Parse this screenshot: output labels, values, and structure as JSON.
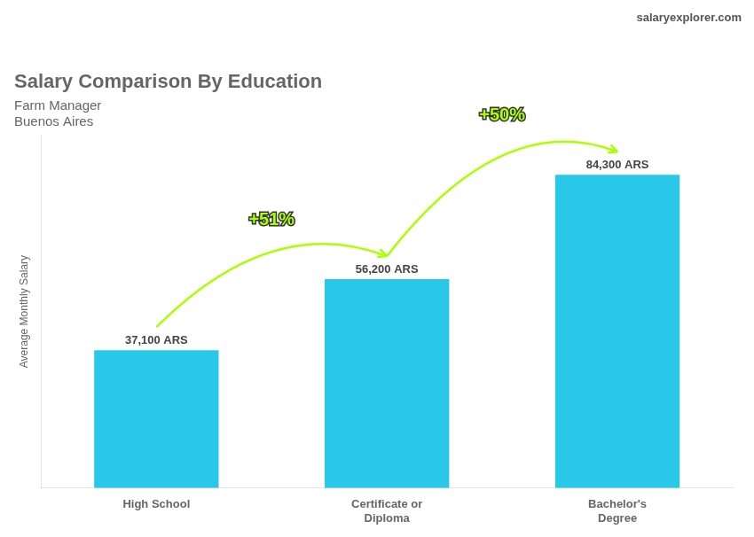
{
  "chart_data": {
    "type": "bar",
    "title": "Salary Comparison By Education",
    "subtitle": [
      "Farm Manager",
      "Buenos Aires"
    ],
    "ylabel": "Average Monthly Salary",
    "categories": [
      "High School",
      "Certificate or\nDiploma",
      "Bachelor's\nDegree"
    ],
    "values": [
      37100,
      56200,
      84300
    ],
    "value_labels": [
      "37,100 ARS",
      "56,200 ARS",
      "84,300 ARS"
    ],
    "data_labels": true,
    "color": "#29C8E8",
    "ylim": [
      0,
      95000
    ],
    "grid": false,
    "tick_labels": "x",
    "annotations": [
      {
        "text": "+51%",
        "from": "High School",
        "to": "Certificate or\nDiploma",
        "color": "#AAFF00"
      },
      {
        "text": "+50%",
        "from": "Certificate or\nDiploma",
        "to": "Bachelor's\nDegree",
        "color": "#AAFF00"
      },
      {
        "text": "salaryexplorer.com"
      }
    ]
  }
}
